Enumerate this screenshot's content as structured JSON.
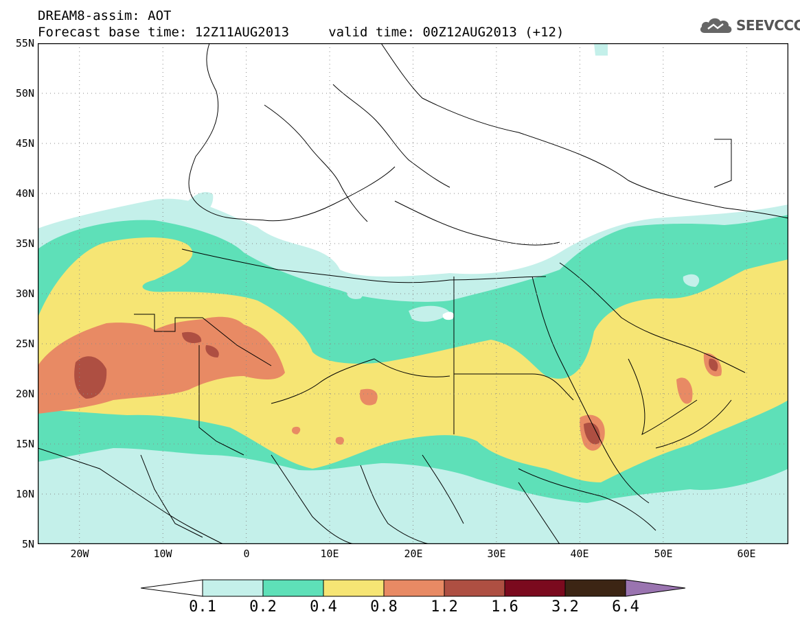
{
  "title": {
    "line1": "DREAM8-assim: AOT",
    "line2": "Forecast base time: 12Z11AUG2013     valid time: 00Z12AUG2013 (+12)"
  },
  "logo": {
    "text": "SEEVCCC",
    "icon": "cloud-icon"
  },
  "map": {
    "lat_labels": [
      "55N",
      "50N",
      "45N",
      "40N",
      "35N",
      "30N",
      "25N",
      "20N",
      "15N",
      "10N",
      "5N"
    ],
    "lon_labels": [
      "20W",
      "10W",
      "0",
      "10E",
      "20E",
      "30E",
      "40E",
      "50E",
      "60E"
    ],
    "lat_range": [
      5,
      55
    ],
    "lon_range": [
      -25,
      65
    ],
    "grid": "dotted"
  },
  "colorbar": {
    "labels": [
      "0.1",
      "0.2",
      "0.4",
      "0.8",
      "1.2",
      "1.6",
      "3.2",
      "6.4"
    ],
    "colors": [
      "#ffffff",
      "#c4f0ea",
      "#5ee0b8",
      "#f6e574",
      "#e88a64",
      "#ae4f42",
      "#7b0a1e",
      "#3c2514",
      "#9a74b0"
    ]
  }
}
